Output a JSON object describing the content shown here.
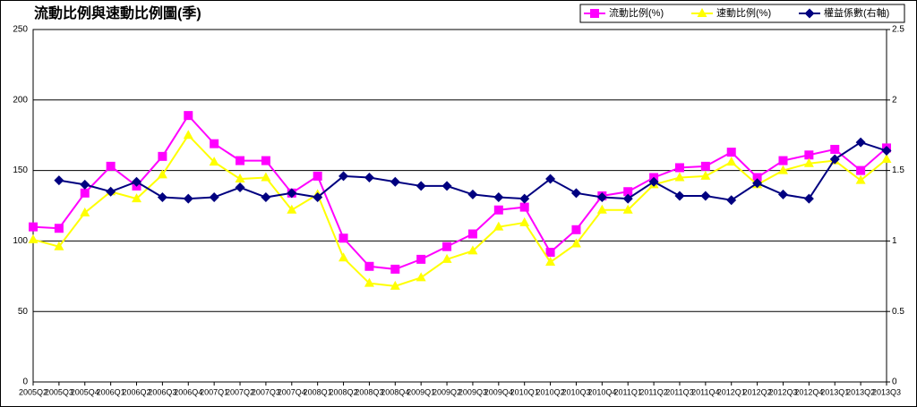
{
  "chart_data": {
    "type": "line",
    "title": "流動比例與速動比例圖(季)",
    "categories": [
      "2005Q2",
      "2005Q3",
      "2005Q4",
      "2006Q1",
      "2006Q2",
      "2006Q3",
      "2006Q4",
      "2007Q1",
      "2007Q2",
      "2007Q3",
      "2007Q4",
      "2008Q1",
      "2008Q2",
      "2008Q3",
      "2008Q4",
      "2009Q1",
      "2009Q2",
      "2009Q3",
      "2009Q4",
      "2010Q1",
      "2010Q2",
      "2010Q3",
      "2010Q4",
      "2011Q1",
      "2011Q2",
      "2011Q3",
      "2011Q4",
      "2012Q1",
      "2012Q2",
      "2012Q3",
      "2012Q4",
      "2013Q1",
      "2013Q2",
      "2013Q3"
    ],
    "series": [
      {
        "name": "流動比例(%)",
        "color": "#ff00ff",
        "marker": "square",
        "values": [
          110,
          109,
          134,
          153,
          139,
          160,
          189,
          169,
          157,
          157,
          134,
          146,
          102,
          82,
          80,
          87,
          96,
          105,
          122,
          124,
          92,
          108,
          132,
          135,
          145,
          152,
          153,
          163,
          145,
          157,
          161,
          165,
          150,
          166
        ]
      },
      {
        "name": "速動比例(%)",
        "color": "#ffff00",
        "marker": "triangle",
        "values": [
          101,
          96,
          120,
          135,
          130,
          147,
          175,
          156,
          144,
          145,
          122,
          133,
          88,
          70,
          68,
          74,
          87,
          93,
          110,
          113,
          85,
          98,
          122,
          122,
          140,
          145,
          146,
          156,
          140,
          150,
          155,
          157,
          143,
          158
        ]
      },
      {
        "name": "權益係數(右軸)",
        "color": "#000080",
        "marker": "diamond",
        "axis": "y2",
        "values": [
          null,
          1.43,
          1.4,
          1.35,
          1.42,
          1.31,
          1.3,
          1.31,
          1.38,
          1.31,
          1.34,
          1.31,
          1.46,
          1.45,
          1.42,
          1.39,
          1.39,
          1.33,
          1.31,
          1.3,
          1.44,
          1.34,
          1.31,
          1.3,
          1.42,
          1.32,
          1.32,
          1.29,
          1.41,
          1.33,
          1.3,
          1.58,
          1.7,
          1.64
        ]
      }
    ],
    "ylim": [
      0,
      250
    ],
    "yticks": [
      0,
      50,
      100,
      150,
      200,
      250
    ],
    "y2lim": [
      0,
      2.5
    ],
    "y2ticks": [
      0,
      0.5,
      1,
      1.5,
      2,
      2.5
    ],
    "grid": true,
    "legend": "top-right"
  }
}
